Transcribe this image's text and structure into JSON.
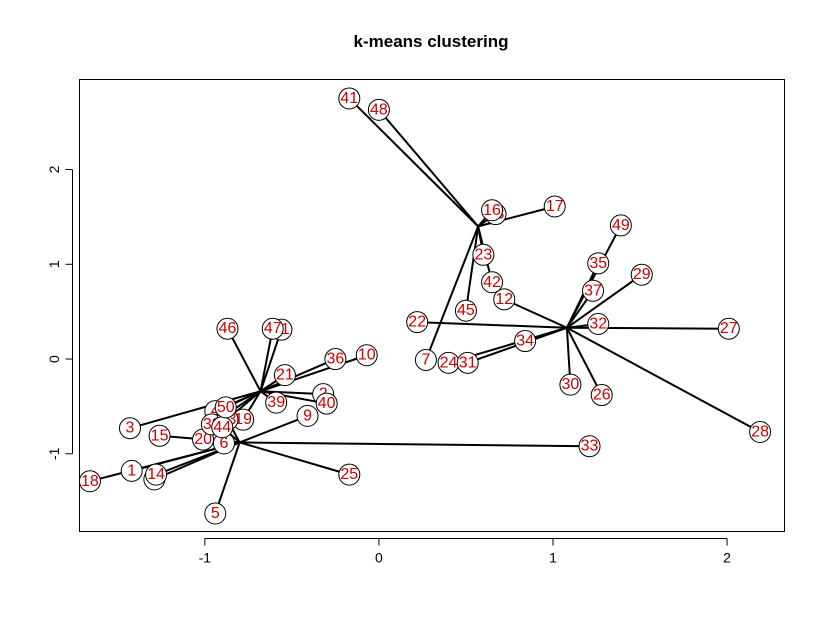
{
  "chart_data": {
    "type": "scatter",
    "title": "k-means clustering",
    "xlabel": "",
    "ylabel": "",
    "xlim": [
      -1.72,
      2.33
    ],
    "ylim": [
      -1.82,
      2.95
    ],
    "x_ticks": [
      -1,
      0,
      1,
      2
    ],
    "y_ticks": [
      -1,
      0,
      1,
      2
    ],
    "x_tick_labels": [
      "-1",
      "0",
      "1",
      "2"
    ],
    "y_tick_labels": [
      "-1",
      "0",
      "1",
      "2"
    ],
    "grid": false,
    "colors": {
      "point_label": "#cc0000",
      "point_edge": "#000000",
      "segment": "#000000"
    },
    "centers": [
      {
        "id": "A",
        "x": -0.68,
        "y": -0.34
      },
      {
        "id": "B",
        "x": -0.8,
        "y": -0.88
      },
      {
        "id": "C",
        "x": 0.57,
        "y": 1.4
      },
      {
        "id": "D",
        "x": 1.08,
        "y": 0.33
      }
    ],
    "points": [
      {
        "label": "1",
        "x": -1.42,
        "y": -1.18,
        "cluster": "B"
      },
      {
        "label": "2",
        "x": -0.32,
        "y": -0.37,
        "cluster": "A"
      },
      {
        "label": "3",
        "x": -1.43,
        "y": -0.73,
        "cluster": "A"
      },
      {
        "label": "4",
        "x": -0.94,
        "y": -0.55,
        "cluster": "A"
      },
      {
        "label": "5",
        "x": -0.94,
        "y": -1.63,
        "cluster": "B"
      },
      {
        "label": "6",
        "x": -0.89,
        "y": -0.89,
        "cluster": "B"
      },
      {
        "label": "7",
        "x": 0.27,
        "y": -0.01,
        "cluster": "C"
      },
      {
        "label": "8",
        "x": -1.29,
        "y": -1.27,
        "cluster": "B"
      },
      {
        "label": "9",
        "x": -0.41,
        "y": -0.6,
        "cluster": "B"
      },
      {
        "label": "10",
        "x": -0.07,
        "y": 0.04,
        "cluster": "A"
      },
      {
        "label": "11",
        "x": -0.56,
        "y": 0.31,
        "cluster": "A"
      },
      {
        "label": "12",
        "x": 0.72,
        "y": 0.63,
        "cluster": "D"
      },
      {
        "label": "13",
        "x": 0.67,
        "y": 1.53,
        "cluster": "C"
      },
      {
        "label": "14",
        "x": -1.28,
        "y": -1.22,
        "cluster": "B"
      },
      {
        "label": "15",
        "x": -1.26,
        "y": -0.81,
        "cluster": "B"
      },
      {
        "label": "16",
        "x": 0.65,
        "y": 1.57,
        "cluster": "C"
      },
      {
        "label": "17",
        "x": 1.01,
        "y": 1.61,
        "cluster": "C"
      },
      {
        "label": "18",
        "x": -1.66,
        "y": -1.29,
        "cluster": "B"
      },
      {
        "label": "19",
        "x": -0.78,
        "y": -0.64,
        "cluster": "A"
      },
      {
        "label": "20",
        "x": -1.01,
        "y": -0.85,
        "cluster": "A"
      },
      {
        "label": "21",
        "x": -0.54,
        "y": -0.17,
        "cluster": "A"
      },
      {
        "label": "22",
        "x": 0.22,
        "y": 0.39,
        "cluster": "D"
      },
      {
        "label": "23",
        "x": 0.6,
        "y": 1.1,
        "cluster": "C"
      },
      {
        "label": "24",
        "x": 0.4,
        "y": -0.04,
        "cluster": "D"
      },
      {
        "label": "25",
        "x": -0.17,
        "y": -1.22,
        "cluster": "B"
      },
      {
        "label": "26",
        "x": 1.28,
        "y": -0.38,
        "cluster": "D"
      },
      {
        "label": "27",
        "x": 2.01,
        "y": 0.32,
        "cluster": "D"
      },
      {
        "label": "28",
        "x": 2.19,
        "y": -0.77,
        "cluster": "D"
      },
      {
        "label": "29",
        "x": 1.51,
        "y": 0.89,
        "cluster": "D"
      },
      {
        "label": "30",
        "x": 1.1,
        "y": -0.27,
        "cluster": "D"
      },
      {
        "label": "31",
        "x": 0.51,
        "y": -0.04,
        "cluster": "D"
      },
      {
        "label": "32",
        "x": 1.26,
        "y": 0.37,
        "cluster": "D"
      },
      {
        "label": "33",
        "x": 1.21,
        "y": -0.92,
        "cluster": "B"
      },
      {
        "label": "34",
        "x": 0.84,
        "y": 0.19,
        "cluster": "D"
      },
      {
        "label": "35",
        "x": 1.26,
        "y": 1.01,
        "cluster": "D"
      },
      {
        "label": "36",
        "x": -0.25,
        "y": 0.0,
        "cluster": "A"
      },
      {
        "label": "37",
        "x": 1.23,
        "y": 0.72,
        "cluster": "D"
      },
      {
        "label": "38",
        "x": -0.96,
        "y": -0.69,
        "cluster": "A"
      },
      {
        "label": "39",
        "x": -0.59,
        "y": -0.46,
        "cluster": "A"
      },
      {
        "label": "40",
        "x": -0.3,
        "y": -0.47,
        "cluster": "A"
      },
      {
        "label": "41",
        "x": -0.17,
        "y": 2.75,
        "cluster": "C"
      },
      {
        "label": "42",
        "x": 0.65,
        "y": 0.81,
        "cluster": "C"
      },
      {
        "label": "43",
        "x": -0.87,
        "y": -0.64,
        "cluster": "B"
      },
      {
        "label": "44",
        "x": -0.9,
        "y": -0.72,
        "cluster": "B"
      },
      {
        "label": "45",
        "x": 0.5,
        "y": 0.51,
        "cluster": "C"
      },
      {
        "label": "46",
        "x": -0.87,
        "y": 0.32,
        "cluster": "A"
      },
      {
        "label": "47",
        "x": -0.61,
        "y": 0.32,
        "cluster": "A"
      },
      {
        "label": "48",
        "x": 0.0,
        "y": 2.63,
        "cluster": "C"
      },
      {
        "label": "49",
        "x": 1.39,
        "y": 1.41,
        "cluster": "D"
      },
      {
        "label": "50",
        "x": -0.88,
        "y": -0.51,
        "cluster": "A"
      }
    ]
  }
}
